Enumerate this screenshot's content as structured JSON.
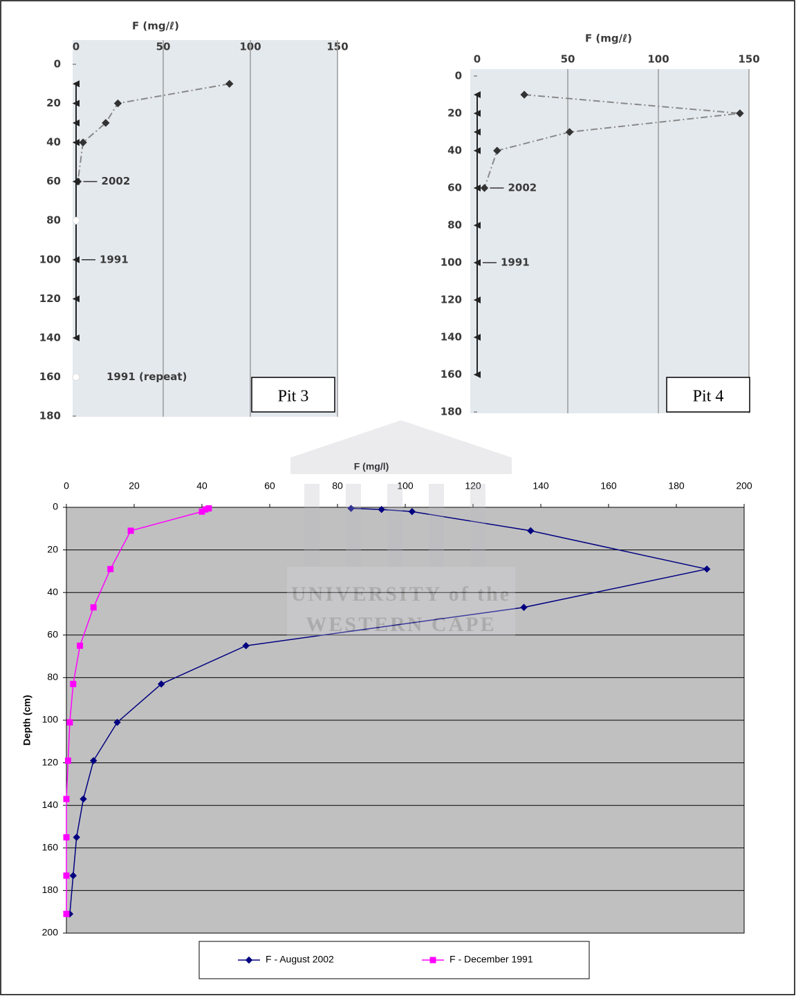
{
  "chart_data": [
    {
      "type": "line",
      "title": "F (mg/ℓ)",
      "annotation": "Pit 3",
      "xlim": [
        0,
        150
      ],
      "xticks": [
        0,
        50,
        100,
        150
      ],
      "ylim": [
        0,
        180
      ],
      "yticks": [
        0,
        20,
        40,
        60,
        80,
        100,
        120,
        140,
        160,
        180
      ],
      "grid": "x",
      "series": [
        {
          "name": "2002",
          "color": "#333333",
          "marker": "diamond",
          "dash": true,
          "x": [
            88,
            24,
            17,
            4,
            1
          ],
          "y": [
            10,
            20,
            30,
            40,
            60
          ]
        },
        {
          "name": "1991",
          "color": "#222222",
          "marker": "triangle",
          "dash": false,
          "x": [
            0,
            0,
            0,
            0,
            0,
            0,
            0,
            0
          ],
          "y": [
            10,
            20,
            30,
            40,
            60,
            100,
            120,
            140
          ]
        },
        {
          "name": "1991 (repeat)",
          "color": "#ffffff",
          "marker": "circle",
          "dash": false,
          "x": [
            0,
            0
          ],
          "y": [
            80,
            160
          ]
        }
      ]
    },
    {
      "type": "line",
      "title": "F (mg/ℓ)",
      "annotation": "Pit 4",
      "xlim": [
        0,
        150
      ],
      "xticks": [
        0,
        50,
        100,
        150
      ],
      "ylim": [
        0,
        180
      ],
      "yticks": [
        0,
        20,
        40,
        60,
        80,
        100,
        120,
        140,
        160,
        180
      ],
      "grid": "x",
      "series": [
        {
          "name": "2002",
          "color": "#333333",
          "marker": "diamond",
          "dash": true,
          "x": [
            26,
            145,
            51,
            11,
            4
          ],
          "y": [
            10,
            20,
            30,
            40,
            60
          ]
        },
        {
          "name": "1991",
          "color": "#222222",
          "marker": "triangle",
          "dash": false,
          "x": [
            0,
            0,
            0,
            0,
            0,
            0,
            0,
            0,
            0,
            0
          ],
          "y": [
            10,
            20,
            30,
            40,
            60,
            80,
            100,
            120,
            140,
            160
          ]
        }
      ]
    },
    {
      "type": "line",
      "title": "F (mg/l)",
      "y_label": "Depth (cm)",
      "legend": "bottom",
      "xlim": [
        0,
        200
      ],
      "xticks": [
        0,
        20,
        40,
        60,
        80,
        100,
        120,
        140,
        160,
        180,
        200
      ],
      "ylim": [
        0,
        200
      ],
      "yticks": [
        0,
        20,
        40,
        60,
        80,
        100,
        120,
        140,
        160,
        180,
        200
      ],
      "grid": "y",
      "series": [
        {
          "name": "F - August 2002",
          "color": "#000080",
          "marker": "diamond",
          "dash": false,
          "x": [
            84,
            93,
            102,
            137,
            189,
            135,
            53,
            28,
            15,
            8,
            5,
            3,
            2,
            1
          ],
          "y": [
            0.5,
            1,
            2,
            11,
            29,
            47,
            65,
            83,
            101,
            119,
            137,
            155,
            173,
            191
          ]
        },
        {
          "name": "F - December 1991",
          "color": "#ff00ff",
          "marker": "square",
          "dash": false,
          "x": [
            42,
            41,
            40,
            19,
            13,
            8,
            4,
            2,
            1,
            0.5,
            0,
            0,
            0,
            0
          ],
          "y": [
            0.5,
            1,
            2,
            11,
            29,
            47,
            65,
            83,
            101,
            119,
            137,
            155,
            173,
            191
          ]
        }
      ]
    }
  ],
  "watermark": {
    "line1": "UNIVERSITY of the",
    "line2": "WESTERN CAPE"
  }
}
